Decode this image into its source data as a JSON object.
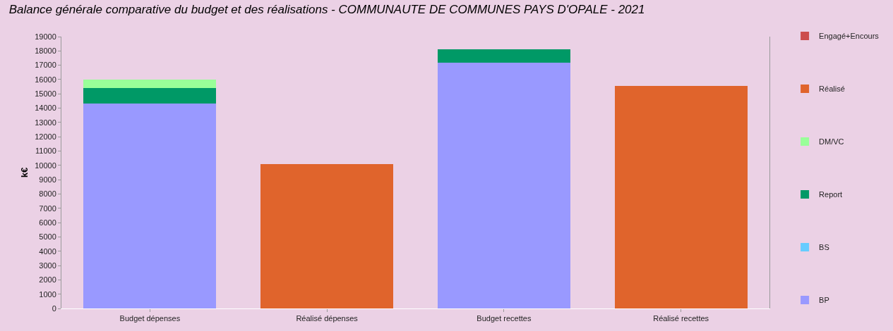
{
  "chart_data": {
    "type": "bar",
    "title": "Balance générale comparative du budget et des réalisations - COMMUNAUTE DE COMMUNES PAYS D'OPALE - 2021",
    "ylabel": "k€",
    "categories": [
      "Budget dépenses",
      "Réalisé dépenses",
      "Budget recettes",
      "Réalisé recettes"
    ],
    "stacked": true,
    "series": [
      {
        "name": "BP",
        "color": "#9999ff",
        "values": [
          14300,
          null,
          17200,
          null
        ]
      },
      {
        "name": "BS",
        "color": "#66ccff",
        "values": [
          null,
          null,
          null,
          null
        ]
      },
      {
        "name": "Report",
        "color": "#009966",
        "values": [
          1100,
          null,
          900,
          null
        ]
      },
      {
        "name": "DM/VC",
        "color": "#99ff99",
        "values": [
          600,
          null,
          null,
          null
        ]
      },
      {
        "name": "Réalisé",
        "color": "#e0642c",
        "values": [
          null,
          10100,
          null,
          15550
        ]
      },
      {
        "name": "Engagé+Encours",
        "color": "#cc4c4c",
        "values": [
          null,
          null,
          null,
          null
        ]
      }
    ],
    "ylim": [
      0,
      19000
    ],
    "yticks": [
      0,
      1000,
      2000,
      3000,
      4000,
      5000,
      6000,
      7000,
      8000,
      9000,
      10000,
      11000,
      12000,
      13000,
      14000,
      15000,
      16000,
      17000,
      18000,
      19000
    ],
    "grid": false,
    "legend": "right"
  }
}
